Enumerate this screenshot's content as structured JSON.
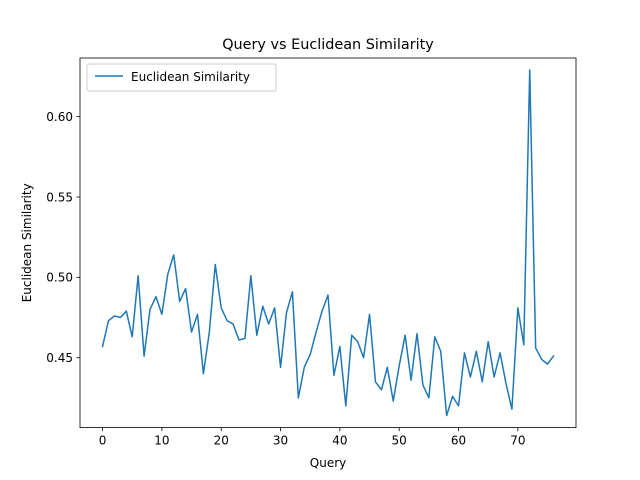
{
  "chart_data": {
    "type": "line",
    "title": "Query vs Euclidean Similarity",
    "xlabel": "Query",
    "ylabel": "Euclidean Similarity",
    "xlim": [
      -3.8,
      79.8
    ],
    "ylim": [
      0.4065,
      0.6365
    ],
    "xticks": [
      0,
      10,
      20,
      30,
      40,
      50,
      60,
      70
    ],
    "yticks": [
      0.45,
      0.5,
      0.55,
      0.6
    ],
    "ytick_labels": [
      "0.45",
      "0.50",
      "0.55",
      "0.60"
    ],
    "grid": false,
    "legend": {
      "position": "top-left"
    },
    "series": [
      {
        "name": "Euclidean Similarity",
        "color": "#1f77b4",
        "x": [
          0,
          1,
          2,
          3,
          4,
          5,
          6,
          7,
          8,
          9,
          10,
          11,
          12,
          13,
          14,
          15,
          16,
          17,
          18,
          19,
          20,
          21,
          22,
          23,
          24,
          25,
          26,
          27,
          28,
          29,
          30,
          31,
          32,
          33,
          34,
          35,
          36,
          37,
          38,
          39,
          40,
          41,
          42,
          43,
          44,
          45,
          46,
          47,
          48,
          49,
          50,
          51,
          52,
          53,
          54,
          55,
          56,
          57,
          58,
          59,
          60,
          61,
          62,
          63,
          64,
          65,
          66,
          67,
          68,
          69,
          70,
          71,
          72,
          73,
          74,
          75,
          76
        ],
        "values": [
          0.457,
          0.473,
          0.476,
          0.475,
          0.479,
          0.463,
          0.501,
          0.451,
          0.48,
          0.488,
          0.477,
          0.502,
          0.514,
          0.485,
          0.493,
          0.466,
          0.477,
          0.44,
          0.466,
          0.508,
          0.481,
          0.473,
          0.471,
          0.461,
          0.462,
          0.501,
          0.464,
          0.482,
          0.471,
          0.481,
          0.444,
          0.478,
          0.491,
          0.425,
          0.444,
          0.452,
          0.466,
          0.479,
          0.489,
          0.439,
          0.457,
          0.42,
          0.464,
          0.46,
          0.45,
          0.477,
          0.435,
          0.43,
          0.444,
          0.423,
          0.445,
          0.464,
          0.436,
          0.465,
          0.433,
          0.425,
          0.463,
          0.454,
          0.414,
          0.426,
          0.42,
          0.453,
          0.438,
          0.454,
          0.435,
          0.46,
          0.438,
          0.453,
          0.434,
          0.418,
          0.481,
          0.458,
          0.629,
          0.456,
          0.449,
          0.446,
          0.451
        ]
      }
    ]
  }
}
